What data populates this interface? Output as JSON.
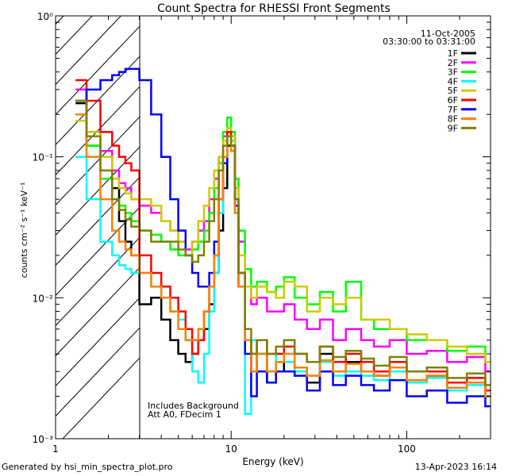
{
  "chart_data": {
    "type": "line",
    "title": "Count Spectra for RHESSI Front Segments",
    "xlabel": "Energy (keV)",
    "ylabel": "counts cm⁻² s⁻¹ keV⁻¹",
    "xscale": "log",
    "yscale": "log",
    "xlim": [
      1,
      300
    ],
    "ylim": [
      0.001,
      1
    ],
    "x_tick_labels": [
      "1",
      "10",
      "100"
    ],
    "y_tick_labels": [
      "10⁻³",
      "10⁻²",
      "10⁻¹",
      "10⁰"
    ],
    "date": "11-Oct-2005",
    "time_range": "03:30:00 to 03:31:00",
    "legend_position": "top-right",
    "shaded_region_keV": [
      1,
      3
    ],
    "annotation_lines": [
      "Includes Background",
      "Att A0, FDecim 1"
    ],
    "series": [
      {
        "name": "1F",
        "color": "#000000",
        "x": [
          1.3,
          1.5,
          1.8,
          2.1,
          2.3,
          2.5,
          2.7,
          3.0,
          3.5,
          4.0,
          4.5,
          5.0,
          5.5,
          6.0,
          6.5,
          7.0,
          7.5,
          8.0,
          8.5,
          9.0,
          9.5,
          10.0,
          10.5,
          11.0,
          12.0,
          13.0,
          14.0,
          16.0,
          18.0,
          20.0,
          23.0,
          27.0,
          32.0,
          38.0,
          45.0,
          55.0,
          65.0,
          80.0,
          100.0,
          130.0,
          170.0,
          220.0,
          280.0
        ],
        "y": [
          0.24,
          0.12,
          0.1,
          0.06,
          0.035,
          0.025,
          0.02,
          0.009,
          0.01,
          0.007,
          0.005,
          0.004,
          0.0035,
          0.004,
          0.005,
          0.006,
          0.009,
          0.015,
          0.03,
          0.06,
          0.12,
          0.14,
          0.05,
          0.015,
          0.005,
          0.003,
          0.004,
          0.0025,
          0.003,
          0.0035,
          0.003,
          0.0025,
          0.004,
          0.003,
          0.0035,
          0.003,
          0.0028,
          0.0032,
          0.0025,
          0.0028,
          0.0022,
          0.0025,
          0.002
        ]
      },
      {
        "name": "2F",
        "color": "#ff00ff",
        "x": [
          1.3,
          1.5,
          1.8,
          2.1,
          2.3,
          2.5,
          2.7,
          3.0,
          3.5,
          4.0,
          4.5,
          5.0,
          5.5,
          6.0,
          6.5,
          7.0,
          7.5,
          8.0,
          8.5,
          9.0,
          9.5,
          10.0,
          10.5,
          11.0,
          12.0,
          13.0,
          14.0,
          16.0,
          18.0,
          20.0,
          23.0,
          27.0,
          32.0,
          38.0,
          45.0,
          55.0,
          65.0,
          80.0,
          100.0,
          130.0,
          170.0,
          220.0,
          280.0
        ],
        "y": [
          0.3,
          0.15,
          0.11,
          0.08,
          0.065,
          0.06,
          0.05,
          0.045,
          0.04,
          0.035,
          0.03,
          0.025,
          0.022,
          0.025,
          0.03,
          0.035,
          0.05,
          0.07,
          0.1,
          0.14,
          0.16,
          0.15,
          0.07,
          0.025,
          0.012,
          0.009,
          0.01,
          0.008,
          0.008,
          0.009,
          0.007,
          0.006,
          0.007,
          0.005,
          0.006,
          0.005,
          0.0045,
          0.005,
          0.004,
          0.0042,
          0.0035,
          0.0038,
          0.003
        ]
      },
      {
        "name": "3F",
        "color": "#00ff00",
        "x": [
          1.3,
          1.5,
          1.8,
          2.1,
          2.3,
          2.5,
          2.7,
          3.0,
          3.5,
          4.0,
          4.5,
          5.0,
          5.5,
          6.0,
          6.5,
          7.0,
          7.5,
          8.0,
          8.5,
          9.0,
          9.5,
          10.0,
          10.5,
          11.0,
          12.0,
          13.0,
          14.0,
          16.0,
          18.0,
          20.0,
          23.0,
          27.0,
          32.0,
          38.0,
          45.0,
          55.0,
          65.0,
          80.0,
          100.0,
          130.0,
          170.0,
          220.0,
          280.0
        ],
        "y": [
          0.2,
          0.12,
          0.07,
          0.05,
          0.045,
          0.04,
          0.035,
          0.03,
          0.028,
          0.025,
          0.022,
          0.02,
          0.02,
          0.022,
          0.025,
          0.03,
          0.04,
          0.06,
          0.09,
          0.15,
          0.19,
          0.15,
          0.07,
          0.03,
          0.016,
          0.012,
          0.013,
          0.011,
          0.012,
          0.014,
          0.01,
          0.009,
          0.011,
          0.008,
          0.013,
          0.007,
          0.006,
          0.006,
          0.005,
          0.005,
          0.0042,
          0.0045,
          0.0035
        ]
      },
      {
        "name": "4F",
        "color": "#00ffff",
        "x": [
          1.3,
          1.5,
          1.8,
          2.1,
          2.3,
          2.5,
          2.7,
          3.0,
          3.5,
          4.0,
          4.5,
          5.0,
          5.5,
          6.0,
          6.5,
          7.0,
          7.5,
          8.0,
          8.5,
          9.0,
          9.5,
          10.0,
          10.5,
          11.0,
          12.0,
          13.0,
          14.0,
          16.0,
          18.0,
          20.0,
          23.0,
          27.0,
          32.0,
          38.0,
          45.0,
          55.0,
          65.0,
          80.0,
          100.0,
          130.0,
          170.0,
          220.0,
          280.0
        ],
        "y": [
          0.1,
          0.05,
          0.025,
          0.02,
          0.017,
          0.016,
          0.015,
          0.015,
          0.012,
          0.01,
          0.008,
          0.007,
          0.005,
          0.003,
          0.0025,
          0.004,
          0.008,
          0.015,
          0.04,
          0.1,
          0.16,
          0.13,
          0.04,
          0.012,
          0.0015,
          0.005,
          0.004,
          0.003,
          0.004,
          0.0035,
          0.003,
          0.0028,
          0.0035,
          0.0028,
          0.003,
          0.0028,
          0.0026,
          0.003,
          0.0025,
          0.0027,
          0.0022,
          0.0024,
          0.002
        ]
      },
      {
        "name": "5F",
        "color": "#cccc00",
        "x": [
          1.3,
          1.5,
          1.8,
          2.1,
          2.3,
          2.5,
          2.7,
          3.0,
          3.5,
          4.0,
          4.5,
          5.0,
          5.5,
          6.0,
          6.5,
          7.0,
          7.5,
          8.0,
          8.5,
          9.0,
          9.5,
          10.0,
          10.5,
          11.0,
          12.0,
          13.0,
          14.0,
          16.0,
          18.0,
          20.0,
          23.0,
          27.0,
          32.0,
          38.0,
          45.0,
          55.0,
          65.0,
          80.0,
          100.0,
          130.0,
          170.0,
          220.0,
          280.0
        ],
        "y": [
          0.18,
          0.15,
          0.1,
          0.07,
          0.06,
          0.055,
          0.05,
          0.05,
          0.045,
          0.035,
          0.03,
          0.025,
          0.02,
          0.025,
          0.035,
          0.045,
          0.06,
          0.08,
          0.1,
          0.13,
          0.16,
          0.14,
          0.06,
          0.02,
          0.012,
          0.01,
          0.012,
          0.011,
          0.01,
          0.013,
          0.012,
          0.008,
          0.01,
          0.009,
          0.01,
          0.007,
          0.007,
          0.006,
          0.0055,
          0.005,
          0.0045,
          0.004,
          0.0035
        ]
      },
      {
        "name": "6F",
        "color": "#ff0000",
        "x": [
          1.3,
          1.5,
          1.8,
          2.1,
          2.3,
          2.5,
          2.7,
          3.0,
          3.5,
          4.0,
          4.5,
          5.0,
          5.5,
          6.0,
          6.5,
          7.0,
          7.5,
          8.0,
          8.5,
          9.0,
          9.5,
          10.0,
          10.5,
          11.0,
          12.0,
          13.0,
          14.0,
          16.0,
          18.0,
          20.0,
          23.0,
          27.0,
          32.0,
          38.0,
          45.0,
          55.0,
          65.0,
          80.0,
          100.0,
          130.0,
          170.0,
          220.0,
          280.0
        ],
        "y": [
          0.35,
          0.25,
          0.15,
          0.12,
          0.1,
          0.09,
          0.08,
          0.02,
          0.015,
          0.012,
          0.01,
          0.008,
          0.006,
          0.004,
          0.005,
          0.008,
          0.012,
          0.02,
          0.05,
          0.1,
          0.15,
          0.12,
          0.045,
          0.015,
          0.005,
          0.004,
          0.005,
          0.004,
          0.004,
          0.0045,
          0.004,
          0.0035,
          0.0045,
          0.0035,
          0.004,
          0.0035,
          0.003,
          0.0035,
          0.003,
          0.003,
          0.0025,
          0.0027,
          0.0022
        ]
      },
      {
        "name": "7F",
        "color": "#0000ff",
        "x": [
          1.3,
          1.5,
          1.8,
          2.1,
          2.3,
          2.5,
          2.7,
          3.0,
          3.5,
          4.0,
          4.5,
          5.0,
          5.5,
          6.0,
          6.5,
          7.0,
          7.5,
          8.0,
          8.5,
          9.0,
          9.5,
          10.0,
          10.5,
          11.0,
          12.0,
          13.0,
          14.0,
          16.0,
          18.0,
          20.0,
          23.0,
          27.0,
          32.0,
          38.0,
          45.0,
          55.0,
          65.0,
          80.0,
          100.0,
          130.0,
          170.0,
          220.0,
          280.0
        ],
        "y": [
          0.25,
          0.3,
          0.35,
          0.38,
          0.4,
          0.42,
          0.42,
          0.35,
          0.2,
          0.1,
          0.05,
          0.03,
          0.02,
          0.015,
          0.012,
          0.012,
          0.015,
          0.025,
          0.05,
          0.09,
          0.14,
          0.12,
          0.045,
          0.012,
          0.004,
          0.002,
          0.003,
          0.0025,
          0.003,
          0.003,
          0.0028,
          0.0022,
          0.003,
          0.0024,
          0.0028,
          0.0024,
          0.0022,
          0.0026,
          0.002,
          0.0022,
          0.0018,
          0.002,
          0.0017
        ]
      },
      {
        "name": "8F",
        "color": "#ff8000",
        "x": [
          1.3,
          1.5,
          1.8,
          2.1,
          2.3,
          2.5,
          2.7,
          3.0,
          3.5,
          4.0,
          4.5,
          5.0,
          5.5,
          6.0,
          6.5,
          7.0,
          7.5,
          8.0,
          8.5,
          9.0,
          9.5,
          10.0,
          10.5,
          11.0,
          12.0,
          13.0,
          14.0,
          16.0,
          18.0,
          20.0,
          23.0,
          27.0,
          32.0,
          38.0,
          45.0,
          55.0,
          65.0,
          80.0,
          100.0,
          130.0,
          170.0,
          220.0,
          280.0
        ],
        "y": [
          0.2,
          0.1,
          0.05,
          0.03,
          0.025,
          0.022,
          0.02,
          0.015,
          0.012,
          0.01,
          0.008,
          0.006,
          0.005,
          0.005,
          0.006,
          0.008,
          0.012,
          0.02,
          0.05,
          0.1,
          0.14,
          0.11,
          0.04,
          0.012,
          0.005,
          0.003,
          0.004,
          0.003,
          0.0035,
          0.004,
          0.0032,
          0.0028,
          0.0036,
          0.003,
          0.0034,
          0.003,
          0.0028,
          0.0032,
          0.0026,
          0.0028,
          0.0023,
          0.0025,
          0.002
        ]
      },
      {
        "name": "9F",
        "color": "#808000",
        "x": [
          1.3,
          1.5,
          1.8,
          2.1,
          2.3,
          2.5,
          2.7,
          3.0,
          3.5,
          4.0,
          4.5,
          5.0,
          5.5,
          6.0,
          6.5,
          7.0,
          7.5,
          8.0,
          8.5,
          9.0,
          9.5,
          10.0,
          10.5,
          11.0,
          12.0,
          13.0,
          14.0,
          16.0,
          18.0,
          20.0,
          23.0,
          27.0,
          32.0,
          38.0,
          45.0,
          55.0,
          65.0,
          80.0,
          100.0,
          130.0,
          170.0,
          220.0,
          280.0
        ],
        "y": [
          0.25,
          0.14,
          0.08,
          0.05,
          0.042,
          0.036,
          0.032,
          0.03,
          0.025,
          0.025,
          0.025,
          0.022,
          0.02,
          0.018,
          0.02,
          0.025,
          0.035,
          0.05,
          0.08,
          0.12,
          0.14,
          0.12,
          0.05,
          0.015,
          0.006,
          0.004,
          0.005,
          0.004,
          0.0045,
          0.005,
          0.004,
          0.0035,
          0.0045,
          0.0038,
          0.0042,
          0.0037,
          0.0033,
          0.0038,
          0.003,
          0.0032,
          0.0027,
          0.0029,
          0.0024
        ]
      }
    ]
  },
  "footer": {
    "left": "Generated by hsi_min_spectra_plot.pro",
    "right": "13-Apr-2023 16:14"
  }
}
